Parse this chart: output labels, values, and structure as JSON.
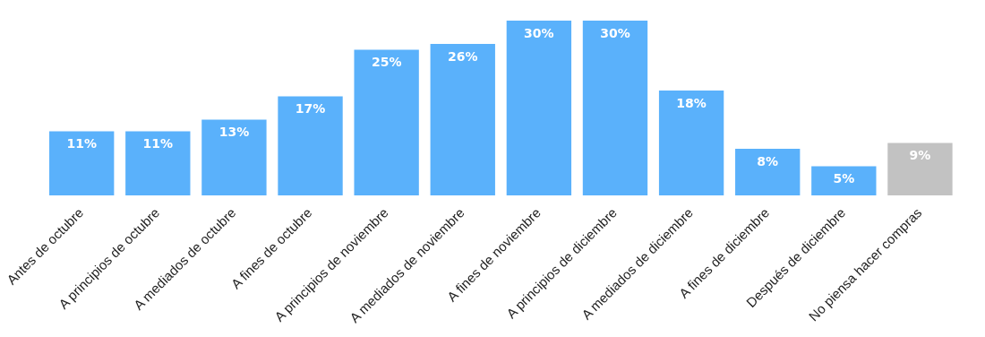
{
  "chart_data": {
    "type": "bar",
    "categories": [
      "Antes de octubre",
      "A principios de octubre",
      "A mediados de octubre",
      "A fines de octubre",
      "A principios de noviembre",
      "A mediados de noviembre",
      "A fines de noviembre",
      "A principios de diciembre",
      "A mediados de diciembre",
      "A fines de diciembre",
      "Después de diciembre",
      "No piensa hacer compras"
    ],
    "values": [
      11,
      11,
      13,
      17,
      25,
      26,
      30,
      30,
      18,
      8,
      5,
      9
    ],
    "value_labels": [
      "11%",
      "11%",
      "13%",
      "17%",
      "25%",
      "26%",
      "30%",
      "30%",
      "18%",
      "8%",
      "5%",
      "9%"
    ],
    "colors": [
      "#5ab1fb",
      "#5ab1fb",
      "#5ab1fb",
      "#5ab1fb",
      "#5ab1fb",
      "#5ab1fb",
      "#5ab1fb",
      "#5ab1fb",
      "#5ab1fb",
      "#5ab1fb",
      "#5ab1fb",
      "#c2c2c2"
    ],
    "grid": false,
    "legend": false
  }
}
